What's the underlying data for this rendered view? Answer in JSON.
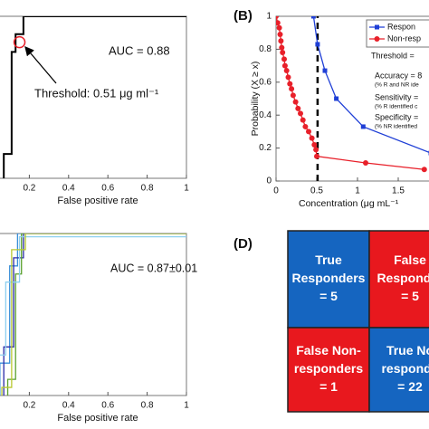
{
  "chart_data": [
    {
      "type": "line",
      "xlabel": "False positive rate",
      "xlim": [
        0,
        1
      ],
      "ylim": [
        0,
        1
      ],
      "xticks": [
        0.2,
        0.4,
        0.6,
        0.8,
        1
      ],
      "series": [
        {
          "color": "#000000",
          "x": [
            0.07,
            0.07,
            0.11,
            0.11,
            0.13,
            0.13,
            0.17,
            0.17,
            1
          ],
          "values": [
            0,
            0.15,
            0.15,
            0.78,
            0.78,
            0.89,
            0.89,
            1,
            1
          ]
        }
      ],
      "threshold_point": {
        "x": 0.15,
        "y": 0.84,
        "color": "#e8202a"
      },
      "annotations": [
        "AUC = 0.88",
        "Threshold: 0.51 μg ml⁻¹"
      ]
    },
    {
      "type": "line",
      "panel_label": "(B)",
      "xlabel": "Concentration (μg mL⁻¹",
      "ylabel": "Probability (X ≥ x)",
      "xlim": [
        0,
        2
      ],
      "ylim": [
        0,
        1
      ],
      "xticks": [
        0,
        0.5,
        1,
        1.5
      ],
      "yticks": [
        0,
        0.2,
        0.4,
        0.6,
        0.8,
        1
      ],
      "legend": "upper right",
      "threshold_line": 0.51,
      "series": [
        {
          "name": "Respon",
          "color": "#1f3fd6",
          "marker": "square",
          "x": [
            0.46,
            0.51,
            0.6,
            0.74,
            1.07,
            1.9
          ],
          "values": [
            1,
            0.83,
            0.67,
            0.5,
            0.33,
            0.17
          ]
        },
        {
          "name": "Non-resp",
          "color": "#e8202a",
          "marker": "circle",
          "x": [
            0,
            0.02,
            0.04,
            0.05,
            0.06,
            0.07,
            0.08,
            0.1,
            0.11,
            0.13,
            0.15,
            0.17,
            0.19,
            0.21,
            0.24,
            0.27,
            0.3,
            0.33,
            0.36,
            0.4,
            0.44,
            0.47,
            0.49,
            0.5,
            1.1,
            1.82
          ],
          "values": [
            1,
            0.96,
            0.93,
            0.89,
            0.85,
            0.81,
            0.78,
            0.74,
            0.7,
            0.67,
            0.63,
            0.59,
            0.56,
            0.52,
            0.48,
            0.44,
            0.41,
            0.37,
            0.33,
            0.3,
            0.26,
            0.22,
            0.19,
            0.15,
            0.11,
            0.07
          ]
        }
      ],
      "annotations": [
        "Threshold =",
        "Accuracy = 8",
        "(% R and NR ide",
        "Sensitivity =",
        "(% R identified c",
        "Specificity =",
        "(% NR identified"
      ]
    },
    {
      "type": "line",
      "xlabel": "False positive rate",
      "xlim": [
        0,
        1
      ],
      "ylim": [
        0,
        1
      ],
      "xticks": [
        0.2,
        0.4,
        0.6,
        0.8,
        1
      ],
      "series": [
        {
          "color": "#3a8fd9",
          "x": [
            0.05,
            0.05,
            0.1,
            0.1,
            0.14,
            0.14,
            1
          ],
          "values": [
            0,
            0.2,
            0.2,
            0.8,
            0.8,
            1,
            1
          ]
        },
        {
          "color": "#2a2aa8",
          "x": [
            0.07,
            0.07,
            0.12,
            0.12,
            0.17,
            0.17,
            1
          ],
          "values": [
            0,
            0.3,
            0.3,
            0.85,
            0.85,
            1,
            1
          ]
        },
        {
          "color": "#5aa02c",
          "x": [
            0.09,
            0.09,
            0.13,
            0.13,
            0.16,
            0.16,
            1
          ],
          "values": [
            0,
            0.1,
            0.1,
            0.75,
            0.75,
            1,
            1
          ]
        },
        {
          "color": "#8fd0f0",
          "x": [
            0.04,
            0.04,
            0.08,
            0.08,
            0.15,
            0.15,
            1
          ],
          "values": [
            0,
            0.25,
            0.25,
            0.7,
            0.7,
            0.98,
            0.98
          ]
        },
        {
          "color": "#b8c832",
          "x": [
            0.06,
            0.06,
            0.11,
            0.11,
            0.18,
            0.18,
            1
          ],
          "values": [
            0,
            0.05,
            0.05,
            0.9,
            0.9,
            1,
            1
          ]
        }
      ],
      "annotations": [
        "AUC = 0.87±0.01"
      ]
    }
  ],
  "panel_d": {
    "panel_label": "(D)",
    "cells": [
      {
        "lines": [
          "True",
          "Responders",
          "= 5"
        ],
        "color": "#1565c0"
      },
      {
        "lines": [
          "False",
          "Responder",
          "= 5"
        ],
        "color": "#e8181e"
      },
      {
        "lines": [
          "False Non-",
          "responders",
          "= 1"
        ],
        "color": "#e8181e"
      },
      {
        "lines": [
          "True No",
          "responde",
          "= 22"
        ],
        "color": "#1565c0"
      }
    ]
  }
}
